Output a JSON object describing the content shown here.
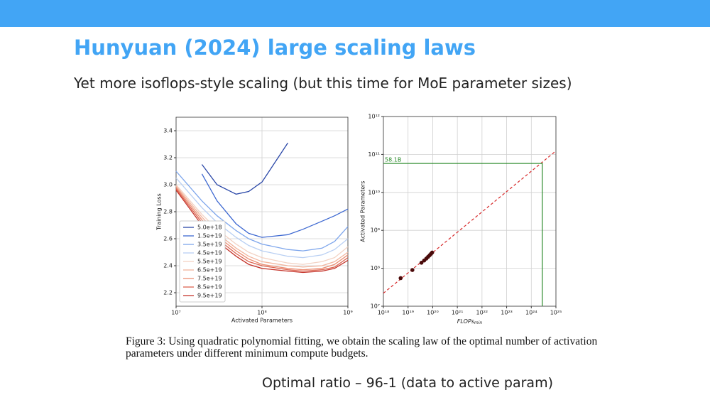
{
  "slide": {
    "title": "Hunyuan (2024) large scaling laws",
    "subtitle": "Yet more isoflops-style scaling (but this time for MoE parameter sizes)",
    "caption": "Figure 3: Using quadratic polynomial fitting, we obtain the scaling law of the optimal number of activation parameters under different minimum compute budgets.",
    "note": "Optimal ratio – 96-1 (data to active param)"
  },
  "chart_data": [
    {
      "type": "line",
      "xlabel": "Activated Parameters",
      "ylabel": "Training Loss",
      "xscale": "log",
      "x": [
        10000000,
        20000000,
        30000000,
        50000000,
        70000000,
        100000000,
        200000000,
        300000000,
        500000000,
        700000000,
        1000000000
      ],
      "xlim": [
        10000000,
        1000000000
      ],
      "xticks": [
        {
          "value": 10000000,
          "label": "10⁷"
        },
        {
          "value": 100000000,
          "label": "10⁸"
        },
        {
          "value": 1000000000,
          "label": "10⁹"
        }
      ],
      "ylim": [
        2.1,
        3.5
      ],
      "yticks": [
        2.2,
        2.4,
        2.6,
        2.8,
        {
          "value": 3,
          "label": "3.0"
        },
        3.2,
        3.4
      ],
      "grid": true,
      "legend": "lower left",
      "series": [
        {
          "name": "5.0e+18",
          "color": "#2b48a8",
          "values": [
            null,
            3.15,
            3.0,
            2.93,
            2.95,
            3.02,
            3.31,
            null,
            null,
            null,
            null
          ]
        },
        {
          "name": "1.5e+19",
          "color": "#3d68d1",
          "values": [
            null,
            3.08,
            2.88,
            2.71,
            2.64,
            2.61,
            2.63,
            2.67,
            2.73,
            2.77,
            2.82
          ]
        },
        {
          "name": "3.5e+19",
          "color": "#7ea6ec",
          "values": [
            3.1,
            2.88,
            2.77,
            2.66,
            2.6,
            2.56,
            2.52,
            2.51,
            2.53,
            2.58,
            2.69
          ]
        },
        {
          "name": "4.5e+19",
          "color": "#b8cff3",
          "values": [
            3.05,
            2.83,
            2.72,
            2.61,
            2.55,
            2.51,
            2.47,
            2.46,
            2.48,
            2.52,
            2.6
          ]
        },
        {
          "name": "5.5e+19",
          "color": "#f3d2c3",
          "values": [
            3.0,
            2.78,
            2.67,
            2.56,
            2.5,
            2.46,
            2.42,
            2.41,
            2.43,
            2.46,
            2.54
          ]
        },
        {
          "name": "6.5e+19",
          "color": "#f2b49c",
          "values": [
            2.99,
            2.76,
            2.64,
            2.53,
            2.47,
            2.43,
            2.4,
            2.39,
            2.4,
            2.43,
            2.5
          ]
        },
        {
          "name": "7.5e+19",
          "color": "#ec8f74",
          "values": [
            2.98,
            2.74,
            2.62,
            2.51,
            2.45,
            2.41,
            2.38,
            2.37,
            2.38,
            2.41,
            2.48
          ]
        },
        {
          "name": "8.5e+19",
          "color": "#dc6450",
          "values": [
            2.97,
            2.72,
            2.6,
            2.49,
            2.43,
            2.4,
            2.37,
            2.36,
            2.37,
            2.39,
            2.46
          ]
        },
        {
          "name": "9.5e+19",
          "color": "#c5352c",
          "values": [
            2.96,
            2.7,
            2.58,
            2.47,
            2.41,
            2.38,
            2.36,
            2.35,
            2.36,
            2.38,
            2.44
          ]
        }
      ]
    },
    {
      "type": "scatter",
      "ylabel": "Activated Parameters",
      "xlabel": {
        "text": "FLOPs",
        "subscript": "min"
      },
      "xscale": "log",
      "yscale": "log",
      "xlim": [
        1e+18,
        1e+25
      ],
      "xticks": [
        {
          "value": 1e+18,
          "label": "10¹⁸"
        },
        {
          "value": 1e+19,
          "label": "10¹⁹"
        },
        {
          "value": 1e+20,
          "label": "10²⁰"
        },
        {
          "value": 1e+21,
          "label": "10²¹"
        },
        {
          "value": 1e+22,
          "label": "10²²"
        },
        {
          "value": 1e+23,
          "label": "10²³"
        },
        {
          "value": 1e+24,
          "label": "10²⁴"
        },
        {
          "value": 1e+25,
          "label": "10²⁵"
        }
      ],
      "ylim": [
        10000000,
        1000000000000
      ],
      "yticks": [
        {
          "value": 10000000,
          "label": "10⁷"
        },
        {
          "value": 100000000,
          "label": "10⁸"
        },
        {
          "value": 1000000000,
          "label": "10⁹"
        },
        {
          "value": 10000000000,
          "label": "10¹⁰"
        },
        {
          "value": 100000000000,
          "label": "10¹¹"
        },
        {
          "value": 1000000000000,
          "label": "10¹²"
        }
      ],
      "grid": true,
      "x": [
        5e+18,
        1.5e+19,
        3.5e+19,
        4.5e+19,
        5.5e+19,
        6.5e+19,
        7.5e+19,
        8.5e+19,
        9.5e+19
      ],
      "values": [
        55000000,
        90000000,
        140000000,
        160000000,
        180000000,
        200000000,
        220000000,
        240000000,
        260000000
      ],
      "color": "#4a0b0b",
      "fit_line": {
        "x": [
          1e+18,
          1e+25
        ],
        "values": [
          22000000,
          124000000000
        ],
        "color": "#d62728"
      },
      "optimum": {
        "label": "58.1B",
        "x": 2.8e+24,
        "value": 58100000000,
        "color": "#2a8a2a"
      }
    }
  ]
}
